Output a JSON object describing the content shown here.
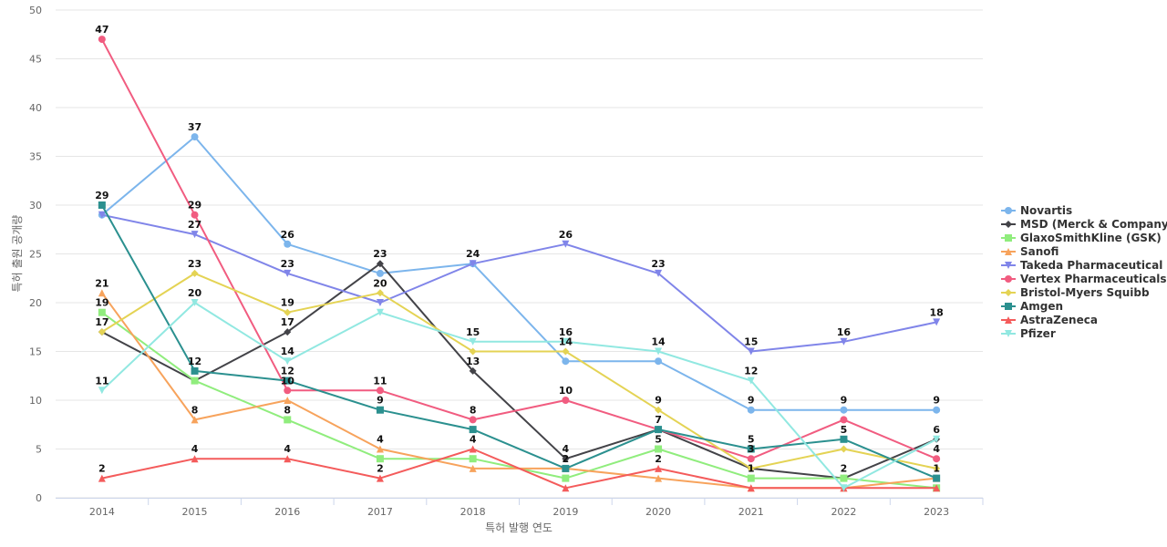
{
  "chart_data": {
    "type": "line",
    "title": "",
    "xlabel": "특허 발행 연도",
    "ylabel": "특허 출원 공개량",
    "x": [
      2014,
      2015,
      2016,
      2017,
      2018,
      2019,
      2020,
      2021,
      2022,
      2023
    ],
    "ylim": [
      0,
      50
    ],
    "yticks": [
      0,
      5,
      10,
      15,
      20,
      25,
      30,
      35,
      40,
      45,
      50
    ],
    "grid": true,
    "legend_position": "right",
    "series": [
      {
        "name": "Novartis",
        "color": "#7cb5ec",
        "marker": "circle",
        "values": [
          29,
          37,
          26,
          23,
          24,
          14,
          14,
          9,
          9,
          9
        ]
      },
      {
        "name": "MSD (Merck & Company)",
        "color": "#434348",
        "marker": "diamond",
        "values": [
          17,
          12,
          17,
          24,
          13,
          4,
          7,
          3,
          2,
          6
        ]
      },
      {
        "name": "GlaxoSmithKline (GSK)",
        "color": "#90ed7d",
        "marker": "square",
        "values": [
          19,
          12,
          8,
          4,
          4,
          2,
          5,
          2,
          2,
          1
        ]
      },
      {
        "name": "Sanofi",
        "color": "#f7a35c",
        "marker": "triangle",
        "values": [
          21,
          8,
          10,
          5,
          3,
          3,
          2,
          1,
          1,
          2
        ]
      },
      {
        "name": "Takeda Pharmaceutical",
        "color": "#8085e9",
        "marker": "triangle-down",
        "values": [
          29,
          27,
          23,
          20,
          24,
          26,
          23,
          15,
          16,
          18
        ]
      },
      {
        "name": "Vertex Pharmaceuticals",
        "color": "#f15c80",
        "marker": "circle",
        "values": [
          47,
          29,
          11,
          11,
          8,
          10,
          7,
          4,
          8,
          4
        ]
      },
      {
        "name": "Bristol-Myers Squibb",
        "color": "#e4d354",
        "marker": "diamond",
        "values": [
          17,
          23,
          19,
          21,
          15,
          15,
          9,
          3,
          5,
          3
        ]
      },
      {
        "name": "Amgen",
        "color": "#2b908f",
        "marker": "square",
        "values": [
          30,
          13,
          12,
          9,
          7,
          3,
          7,
          5,
          6,
          2
        ]
      },
      {
        "name": "AstraZeneca",
        "color": "#f45b5b",
        "marker": "triangle",
        "values": [
          2,
          4,
          4,
          2,
          5,
          1,
          3,
          1,
          1,
          1
        ]
      },
      {
        "name": "Pfizer",
        "color": "#91e8e1",
        "marker": "triangle-down",
        "values": [
          11,
          20,
          14,
          19,
          16,
          16,
          15,
          12,
          1,
          6
        ]
      }
    ],
    "data_labels": [
      {
        "x": 2014,
        "y": 47,
        "text": "47"
      },
      {
        "x": 2014,
        "y": 30,
        "text": "29"
      },
      {
        "x": 2014,
        "y": 21,
        "text": "21"
      },
      {
        "x": 2014,
        "y": 19,
        "text": "19"
      },
      {
        "x": 2014,
        "y": 17,
        "text": "17"
      },
      {
        "x": 2014,
        "y": 11,
        "text": "11"
      },
      {
        "x": 2014,
        "y": 2,
        "text": "2"
      },
      {
        "x": 2015,
        "y": 37,
        "text": "37"
      },
      {
        "x": 2015,
        "y": 29,
        "text": "29"
      },
      {
        "x": 2015,
        "y": 27,
        "text": "27"
      },
      {
        "x": 2015,
        "y": 23,
        "text": "23"
      },
      {
        "x": 2015,
        "y": 20,
        "text": "20"
      },
      {
        "x": 2015,
        "y": 13,
        "text": "12"
      },
      {
        "x": 2015,
        "y": 8,
        "text": "8"
      },
      {
        "x": 2015,
        "y": 4,
        "text": "4"
      },
      {
        "x": 2016,
        "y": 26,
        "text": "26"
      },
      {
        "x": 2016,
        "y": 23,
        "text": "23"
      },
      {
        "x": 2016,
        "y": 19,
        "text": "19"
      },
      {
        "x": 2016,
        "y": 17,
        "text": "17"
      },
      {
        "x": 2016,
        "y": 14,
        "text": "14"
      },
      {
        "x": 2016,
        "y": 12,
        "text": "12"
      },
      {
        "x": 2016,
        "y": 11,
        "text": "10"
      },
      {
        "x": 2016,
        "y": 8,
        "text": "8"
      },
      {
        "x": 2016,
        "y": 4,
        "text": "4"
      },
      {
        "x": 2017,
        "y": 24,
        "text": "23"
      },
      {
        "x": 2017,
        "y": 21,
        "text": "20"
      },
      {
        "x": 2017,
        "y": 11,
        "text": "11"
      },
      {
        "x": 2017,
        "y": 9,
        "text": "9"
      },
      {
        "x": 2017,
        "y": 5,
        "text": "4"
      },
      {
        "x": 2017,
        "y": 2,
        "text": "2"
      },
      {
        "x": 2018,
        "y": 24,
        "text": "24"
      },
      {
        "x": 2018,
        "y": 16,
        "text": "15"
      },
      {
        "x": 2018,
        "y": 13,
        "text": "13"
      },
      {
        "x": 2018,
        "y": 8,
        "text": "8"
      },
      {
        "x": 2018,
        "y": 5,
        "text": "4"
      },
      {
        "x": 2019,
        "y": 26,
        "text": "26"
      },
      {
        "x": 2019,
        "y": 16,
        "text": "16"
      },
      {
        "x": 2019,
        "y": 15,
        "text": "14"
      },
      {
        "x": 2019,
        "y": 10,
        "text": "10"
      },
      {
        "x": 2019,
        "y": 4,
        "text": "4"
      },
      {
        "x": 2019,
        "y": 3,
        "text": "2"
      },
      {
        "x": 2020,
        "y": 23,
        "text": "23"
      },
      {
        "x": 2020,
        "y": 15,
        "text": "14"
      },
      {
        "x": 2020,
        "y": 9,
        "text": "9"
      },
      {
        "x": 2020,
        "y": 7,
        "text": "7"
      },
      {
        "x": 2020,
        "y": 5,
        "text": "5"
      },
      {
        "x": 2020,
        "y": 3,
        "text": "2"
      },
      {
        "x": 2021,
        "y": 15,
        "text": "15"
      },
      {
        "x": 2021,
        "y": 12,
        "text": "12"
      },
      {
        "x": 2021,
        "y": 9,
        "text": "9"
      },
      {
        "x": 2021,
        "y": 5,
        "text": "5"
      },
      {
        "x": 2021,
        "y": 4,
        "text": "3"
      },
      {
        "x": 2021,
        "y": 2,
        "text": "1"
      },
      {
        "x": 2022,
        "y": 16,
        "text": "16"
      },
      {
        "x": 2022,
        "y": 9,
        "text": "9"
      },
      {
        "x": 2022,
        "y": 6,
        "text": "5"
      },
      {
        "x": 2022,
        "y": 2,
        "text": "2"
      },
      {
        "x": 2023,
        "y": 18,
        "text": "18"
      },
      {
        "x": 2023,
        "y": 9,
        "text": "9"
      },
      {
        "x": 2023,
        "y": 6,
        "text": "6"
      },
      {
        "x": 2023,
        "y": 4,
        "text": "4"
      },
      {
        "x": 2023,
        "y": 2,
        "text": "1"
      }
    ]
  }
}
